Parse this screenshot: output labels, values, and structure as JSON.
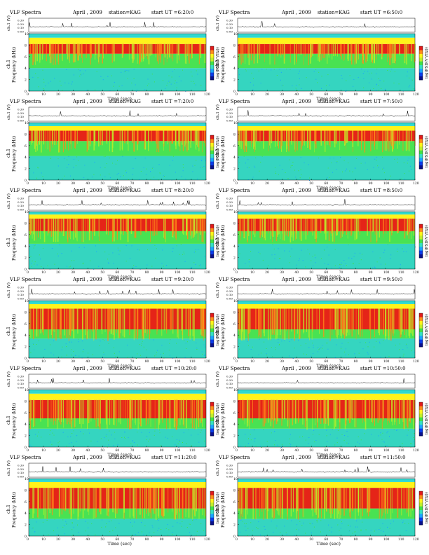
{
  "panel_header": {
    "title": "VLF Spectra",
    "date": "April , 2009",
    "station": "station=KAG",
    "start_prefix": "start  UT ="
  },
  "axis_text": {
    "ch1_label": "ch.1 (V)",
    "ylabel": "Frequency (kHz)",
    "ylabel_prefix": "ch.1",
    "xlabel": "Time (sec)",
    "colorbar_label": "log(PSD(V²/Hz))",
    "amp_ticks": [
      "0.30",
      "0.20",
      "0.10",
      "0.00"
    ]
  },
  "colors": {
    "colormap": [
      "#08108c",
      "#0a3be8",
      "#1aa3ff",
      "#33e0c0",
      "#3fe046",
      "#bfee2a",
      "#fff31a",
      "#ff8c1a",
      "#e01a1a"
    ],
    "low_band": "#35d5c0",
    "mid_band": "#49e252",
    "high_band": "#e52418",
    "top_band": "#2fd9d0",
    "trace": "#000000"
  },
  "chart_data": [
    {
      "type": "heatmap",
      "start_time": "6:20:0",
      "xlabel": "Time (sec)",
      "ylabel": "Frequency (kHz)",
      "xlim": [
        0,
        120
      ],
      "ylim": [
        0,
        10
      ],
      "xticks": [
        0,
        10,
        20,
        30,
        40,
        50,
        60,
        70,
        80,
        90,
        100,
        110,
        120
      ],
      "yticks": [
        0,
        2,
        4,
        6,
        8,
        10
      ],
      "band_levels": {
        "low_end_khz": 4.0,
        "red_from_khz": 6.5,
        "red_to_khz": 8.2,
        "cyan_from_khz": 9.3
      }
    },
    {
      "type": "heatmap",
      "start_time": "6:50:0",
      "xlabel": "Time (sec)",
      "ylabel": "Frequency (kHz)",
      "xlim": [
        0,
        120
      ],
      "ylim": [
        0,
        10
      ],
      "xticks": [
        0,
        10,
        20,
        30,
        40,
        50,
        60,
        70,
        80,
        90,
        100,
        110,
        120
      ],
      "yticks": [
        0,
        2,
        4,
        6,
        8,
        10
      ],
      "band_levels": {
        "low_end_khz": 4.0,
        "red_from_khz": 6.5,
        "red_to_khz": 8.2,
        "cyan_from_khz": 9.3
      }
    },
    {
      "type": "heatmap",
      "start_time": "7:20:0",
      "xlabel": "Time (sec)",
      "ylabel": "Frequency (kHz)",
      "xlim": [
        0,
        120
      ],
      "ylim": [
        0,
        10
      ],
      "xticks": [
        0,
        10,
        20,
        30,
        40,
        50,
        60,
        70,
        80,
        90,
        100,
        110,
        120
      ],
      "yticks": [
        0,
        2,
        4,
        6,
        8,
        10
      ],
      "band_levels": {
        "low_end_khz": 4.2,
        "red_from_khz": 6.8,
        "red_to_khz": 8.6,
        "cyan_from_khz": 9.4
      }
    },
    {
      "type": "heatmap",
      "start_time": "7:50:0",
      "xlabel": "Time (sec)",
      "ylabel": "Frequency (kHz)",
      "xlim": [
        0,
        120
      ],
      "ylim": [
        0,
        10
      ],
      "xticks": [
        0,
        10,
        20,
        30,
        40,
        50,
        60,
        70,
        80,
        90,
        100,
        110,
        120
      ],
      "yticks": [
        0,
        2,
        4,
        6,
        8,
        10
      ],
      "band_levels": {
        "low_end_khz": 4.2,
        "red_from_khz": 6.8,
        "red_to_khz": 8.6,
        "cyan_from_khz": 9.4
      }
    },
    {
      "type": "heatmap",
      "start_time": "8:20:0",
      "xlabel": "Time (sec)",
      "ylabel": "Frequency (kHz)",
      "xlim": [
        0,
        120
      ],
      "ylim": [
        0,
        10
      ],
      "xticks": [
        0,
        10,
        20,
        30,
        40,
        50,
        60,
        70,
        80,
        90,
        100,
        110,
        120
      ],
      "yticks": [
        0,
        2,
        4,
        6,
        8,
        10
      ],
      "band_levels": {
        "low_end_khz": 4.4,
        "red_from_khz": 6.6,
        "red_to_khz": 8.8,
        "cyan_from_khz": 9.5
      }
    },
    {
      "type": "heatmap",
      "start_time": "8:50:0",
      "xlabel": "Time (sec)",
      "ylabel": "Frequency (kHz)",
      "xlim": [
        0,
        120
      ],
      "ylim": [
        0,
        10
      ],
      "xticks": [
        0,
        10,
        20,
        30,
        40,
        50,
        60,
        70,
        80,
        90,
        100,
        110,
        120
      ],
      "yticks": [
        0,
        2,
        4,
        6,
        8,
        10
      ],
      "band_levels": {
        "low_end_khz": 4.4,
        "red_from_khz": 6.6,
        "red_to_khz": 8.8,
        "cyan_from_khz": 9.5
      }
    },
    {
      "type": "heatmap",
      "start_time": "9:20:0",
      "xlabel": "Time (sec)",
      "ylabel": "Frequency (kHz)",
      "xlim": [
        0,
        120
      ],
      "ylim": [
        0,
        10
      ],
      "xticks": [
        0,
        10,
        20,
        30,
        40,
        50,
        60,
        70,
        80,
        90,
        100,
        110,
        120
      ],
      "yticks": [
        0,
        2,
        4,
        6,
        8,
        10
      ],
      "band_levels": {
        "low_end_khz": 3.4,
        "red_from_khz": 5.0,
        "red_to_khz": 8.6,
        "cyan_from_khz": 9.4
      }
    },
    {
      "type": "heatmap",
      "start_time": "9:50:0",
      "xlabel": "Time (sec)",
      "ylabel": "Frequency (kHz)",
      "xlim": [
        0,
        120
      ],
      "ylim": [
        0,
        10
      ],
      "xticks": [
        0,
        10,
        20,
        30,
        40,
        50,
        60,
        70,
        80,
        90,
        100,
        110,
        120
      ],
      "yticks": [
        0,
        2,
        4,
        6,
        8,
        10
      ],
      "band_levels": {
        "low_end_khz": 3.4,
        "red_from_khz": 5.0,
        "red_to_khz": 8.6,
        "cyan_from_khz": 9.4
      }
    },
    {
      "type": "heatmap",
      "start_time": "10:20:0",
      "xlabel": "Time (sec)",
      "ylabel": "Frequency (kHz)",
      "xlim": [
        0,
        120
      ],
      "ylim": [
        0,
        10
      ],
      "xticks": [
        0,
        10,
        20,
        30,
        40,
        50,
        60,
        70,
        80,
        90,
        100,
        110,
        120
      ],
      "yticks": [
        0,
        2,
        4,
        6,
        8,
        10
      ],
      "band_levels": {
        "low_end_khz": 3.2,
        "red_from_khz": 5.0,
        "red_to_khz": 8.2,
        "cyan_from_khz": 9.3
      }
    },
    {
      "type": "heatmap",
      "start_time": "10:50:0",
      "xlabel": "Time (sec)",
      "ylabel": "Frequency (kHz)",
      "xlim": [
        0,
        120
      ],
      "ylim": [
        0,
        10
      ],
      "xticks": [
        0,
        10,
        20,
        30,
        40,
        50,
        60,
        70,
        80,
        90,
        100,
        110,
        120
      ],
      "yticks": [
        0,
        2,
        4,
        6,
        8,
        10
      ],
      "band_levels": {
        "low_end_khz": 3.2,
        "red_from_khz": 5.0,
        "red_to_khz": 8.2,
        "cyan_from_khz": 9.3
      }
    },
    {
      "type": "heatmap",
      "start_time": "11:20:0",
      "xlabel": "Time (sec)",
      "ylabel": "Frequency (kHz)",
      "xlim": [
        0,
        120
      ],
      "ylim": [
        0,
        10
      ],
      "xticks": [
        0,
        10,
        20,
        30,
        40,
        50,
        60,
        70,
        80,
        90,
        100,
        110,
        120
      ],
      "yticks": [
        0,
        2,
        4,
        6,
        8,
        10
      ],
      "band_levels": {
        "low_end_khz": 3.0,
        "red_from_khz": 4.8,
        "red_to_khz": 8.4,
        "cyan_from_khz": 9.4
      }
    },
    {
      "type": "heatmap",
      "start_time": "11:50:0",
      "xlabel": "Time (sec)",
      "ylabel": "Frequency (kHz)",
      "xlim": [
        0,
        120
      ],
      "ylim": [
        0,
        10
      ],
      "xticks": [
        0,
        10,
        20,
        30,
        40,
        50,
        60,
        70,
        80,
        90,
        100,
        110,
        120
      ],
      "yticks": [
        0,
        2,
        4,
        6,
        8,
        10
      ],
      "band_levels": {
        "low_end_khz": 3.0,
        "red_from_khz": 4.8,
        "red_to_khz": 8.4,
        "cyan_from_khz": 9.4
      }
    }
  ]
}
